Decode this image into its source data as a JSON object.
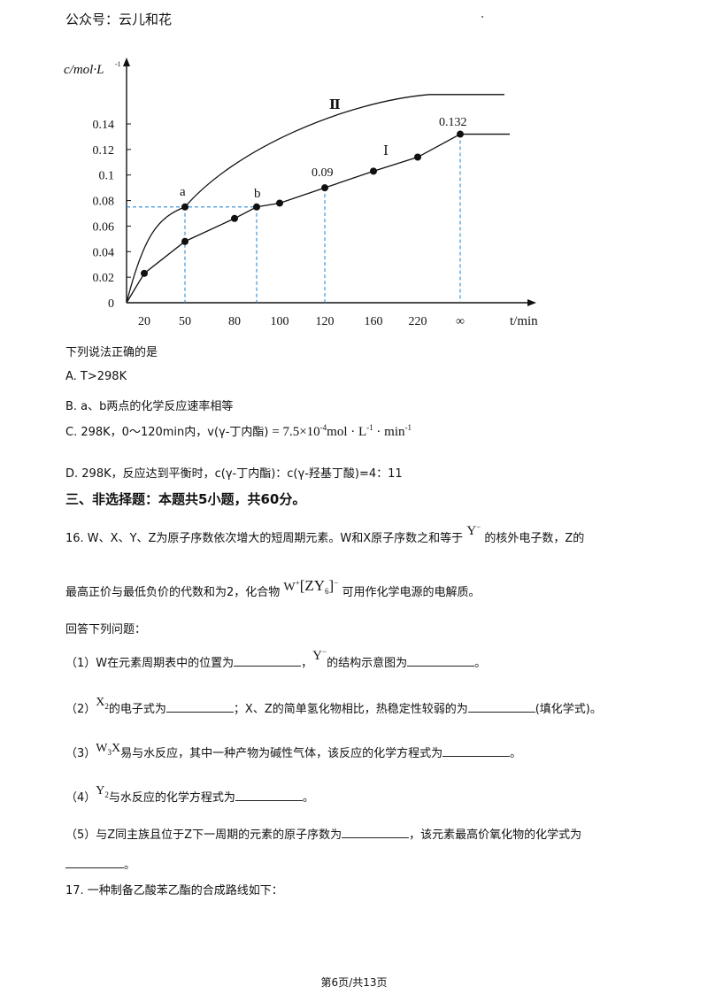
{
  "header": {
    "account": "公众号：云儿和花"
  },
  "chart_data": {
    "type": "line",
    "ylabel": "c/mol·L",
    "ylabel_sup": "-1",
    "xlabel": "t/min",
    "y_ticks": [
      "0",
      "0.02",
      "0.04",
      "0.06",
      "0.08",
      "0.1",
      "0.12",
      "0.14"
    ],
    "x_ticks": [
      "20",
      "50",
      "80",
      "100",
      "120",
      "160",
      "220",
      "∞"
    ],
    "ylim": [
      0,
      0.14
    ],
    "series": [
      {
        "name": "Ⅰ",
        "x": [
          "20",
          "50",
          "80",
          "90",
          "100",
          "120",
          "160",
          "220",
          "∞"
        ],
        "y": [
          0.023,
          0.048,
          0.066,
          0.075,
          0.078,
          0.09,
          0.103,
          0.114,
          0.132
        ]
      },
      {
        "name": "Ⅱ",
        "x": [
          "0",
          "50",
          "∞"
        ],
        "y": [
          0,
          0.075,
          0.163
        ]
      }
    ],
    "annotations": {
      "a": "a",
      "b": "b",
      "v090": "0.09",
      "v0132": "0.132"
    },
    "grid": false
  },
  "question15": {
    "prompt": "下列说法正确的是",
    "A": "A.  T>298K",
    "B": "B.  a、b两点的化学反应速率相等",
    "C_prefix": "C.  298K，0～120min内，v(γ-丁内酯)",
    "C_math": "= 7.5×10",
    "C_exp": "-4",
    "C_unit": "mol · L",
    "C_unit_exp": "-1",
    "C_unit2": " · min",
    "C_unit2_exp": "-1",
    "D": "D.  298K，反应达到平衡时，c(γ-丁内酯)：c(γ-羟基丁酸)=4：11"
  },
  "section3": {
    "title": "三、非选择题：本题共5小题，共60分。"
  },
  "question16": {
    "line1_a": "16.  W、X、Y、Z为原子序数依次增大的短周期元素。W和X原子序数之和等于",
    "ion_Y": "Y",
    "ion_minus": "−",
    "line1_b": "的核外电子数，Z的",
    "line2_a": "最高正价与最低负价的代数和为2，化合物",
    "compound": "W",
    "compound_charge": "+",
    "compound_bracket": "[ZY",
    "compound_sub": "6",
    "compound_close": "]",
    "compound_charge2": "−",
    "line2_b": "可用作化学电源的电解质。",
    "answer_prompt": "回答下列问题：",
    "p1_a": "（1）W在元素周期表中的位置为",
    "p1_b": "的结构示意图为",
    "p1_end": "。",
    "p2_a": "（2）",
    "p2_X": "X",
    "p2_sub": "2",
    "p2_b": "的电子式为",
    "p2_c": "；X、Z的简单氢化物相比，热稳定性较弱的为",
    "p2_d": "(填化学式)。",
    "p3_a": "（3）",
    "p3_chem": "W",
    "p3_sub": "3",
    "p3_X": "X",
    "p3_b": "易与水反应，其中一种产物为碱性气体，该反应的化学方程式为",
    "p3_end": "。",
    "p4_a": "（4）",
    "p4_Y": "Y",
    "p4_sub": "2",
    "p4_b": "与水反应的化学方程式为",
    "p4_end": "。",
    "p5_a": "（5）与Z同主族且位于Z下一周期的元素的原子序数为",
    "p5_b": "，该元素最高价氧化物的化学式为",
    "p5_end": "。"
  },
  "question17": {
    "text": "17.  一种制备乙酸苯乙酯的合成路线如下："
  },
  "footer": {
    "page": "第6页/共13页"
  }
}
